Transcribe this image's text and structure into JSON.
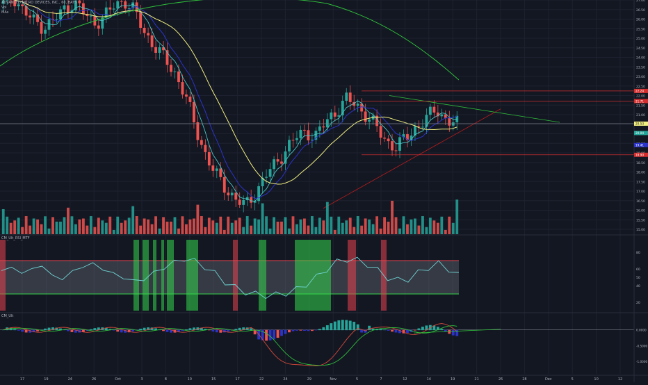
{
  "header": {
    "symbol_line": "ADVANCED MICRO DEVICES, INC., 60, BATS",
    "vol_label": "Vol",
    "mas_label": "MAs",
    "rsi_title": "CM_Ult_RSI_MTF",
    "macd_title": "CM_Ult"
  },
  "colors": {
    "background": "#131722",
    "grid": "#1e2230",
    "up": "#26a69a",
    "down": "#ef5350",
    "ma_yellow": "#f2f080",
    "ma_green": "#2fbf3a",
    "ma_blue": "#2b34c9",
    "ma_teal": "#49c6c6",
    "rsi_line": "#6fd3d3",
    "band_red": "#e8414f",
    "band_green": "#33d74a"
  },
  "chart_data": [
    {
      "type": "candlestick",
      "title": "ADVANCED MICRO DEVICES, INC., 60, BATS",
      "y_ticks": [
        "27.00",
        "26.50",
        "26.00",
        "25.50",
        "25.00",
        "24.50",
        "24.00",
        "23.50",
        "23.00",
        "22.50",
        "22.00",
        "21.50",
        "21.00",
        "20.50",
        "20.00",
        "19.50",
        "19.00",
        "18.50",
        "18.00",
        "17.50",
        "17.00",
        "16.50",
        "16.00",
        "15.50",
        "15.00"
      ],
      "ylim": [
        15.0,
        27.0
      ],
      "price_labels": [
        {
          "text": "22.24",
          "color": "#d32f2f"
        },
        {
          "text": "21.71",
          "color": "#d32f2f"
        },
        {
          "text": "20.53",
          "color": "#f2f080"
        },
        {
          "text": "20.04",
          "color": "#26a69a"
        },
        {
          "text": "19.41",
          "color": "#2b34c9"
        },
        {
          "text": "18.90",
          "color": "#d32f2f"
        }
      ],
      "levels": [
        22.24,
        21.71,
        20.53,
        18.9
      ],
      "series_close_approx": [
        26.8,
        27.2,
        26.4,
        25.9,
        25.6,
        25.9,
        26.5,
        26.9,
        26.3,
        25.8,
        26.1,
        26.7,
        27.0,
        26.4,
        25.3,
        24.6,
        23.9,
        23.2,
        22.1,
        20.4,
        19.0,
        17.9,
        17.2,
        16.6,
        16.2,
        16.9,
        17.8,
        18.4,
        19.2,
        19.8,
        20.1,
        19.9,
        20.6,
        21.2,
        21.8,
        21.5,
        21.0,
        20.3,
        19.6,
        19.3,
        19.8,
        20.4,
        20.8,
        21.3,
        20.7,
        20.5
      ]
    },
    {
      "type": "bar",
      "title": "Vol"
    },
    {
      "type": "line",
      "title": "CM_Ult_RSI_MTF",
      "y_ticks": [
        "80",
        "60",
        "50",
        "40",
        "20"
      ],
      "ylim": [
        10,
        95
      ],
      "values": [
        58,
        62,
        55,
        60,
        64,
        52,
        48,
        57,
        63,
        66,
        60,
        54,
        50,
        45,
        48,
        55,
        62,
        68,
        72,
        70,
        62,
        55,
        44,
        38,
        32,
        30,
        28,
        29,
        31,
        35,
        42,
        50,
        60,
        68,
        72,
        70,
        66,
        58,
        50,
        46,
        48,
        55,
        62,
        66,
        60,
        52
      ]
    },
    {
      "type": "bar",
      "title": "CM_Ult",
      "y_ticks": [
        "0.0000",
        "-0.5000",
        "-1.0000"
      ],
      "ylim": [
        -1.4,
        0.5
      ]
    }
  ],
  "x_axis": {
    "labels": [
      "17",
      "19",
      "24",
      "26",
      "Oct",
      "3",
      "8",
      "10",
      "15",
      "17",
      "22",
      "24",
      "29",
      "Nov",
      "5",
      "7",
      "12",
      "14",
      "19",
      "21",
      "26",
      "28",
      "Dec",
      "5",
      "10",
      "12"
    ]
  }
}
